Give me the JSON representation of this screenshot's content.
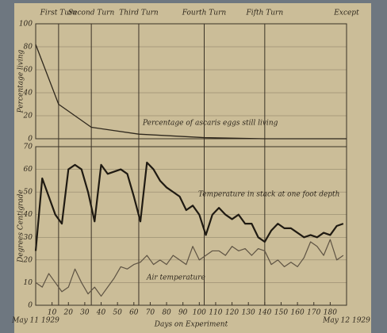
{
  "chart_data": [
    {
      "type": "line",
      "ylabel": "Percentage living",
      "xlim": [
        0,
        190
      ],
      "ylim": [
        0,
        100
      ],
      "yticks": [
        0,
        20,
        40,
        60,
        80,
        100
      ],
      "turns": [
        {
          "label": "First Turn",
          "day": 14
        },
        {
          "label": "Second Turn",
          "day": 34
        },
        {
          "label": "Third Turn",
          "day": 63
        },
        {
          "label": "Fourth Turn",
          "day": 103
        },
        {
          "label": "Fifth Turn",
          "day": 140
        },
        {
          "label": "Except",
          "day": 190
        }
      ],
      "x": [
        0,
        14,
        34,
        63,
        103,
        140,
        190
      ],
      "series": [
        {
          "name": "Percentage of ascaris eggs still living",
          "color": "#2e271c",
          "values": [
            82,
            30,
            10,
            4,
            1,
            0,
            0
          ]
        }
      ]
    },
    {
      "type": "line",
      "ylabel": "Degrees Centigrade",
      "xlabel": "Days on Experiment",
      "start_label": "May 11 1929",
      "end_label": "May 12 1929",
      "xlim": [
        0,
        190
      ],
      "xticks": [
        10,
        20,
        30,
        40,
        50,
        60,
        70,
        80,
        90,
        100,
        110,
        120,
        130,
        140,
        150,
        160,
        170,
        180
      ],
      "ylim": [
        0,
        70
      ],
      "yticks": [
        0,
        10,
        20,
        30,
        40,
        50,
        60,
        70
      ],
      "x": [
        0,
        4,
        8,
        12,
        16,
        20,
        24,
        28,
        32,
        36,
        40,
        44,
        48,
        52,
        56,
        60,
        64,
        68,
        72,
        76,
        80,
        84,
        88,
        92,
        96,
        100,
        104,
        108,
        112,
        116,
        120,
        124,
        128,
        132,
        136,
        140,
        144,
        148,
        152,
        156,
        160,
        164,
        168,
        172,
        176,
        180,
        184,
        188
      ],
      "series": [
        {
          "name": "Temperature in stack at one foot depth",
          "color": "#1f1a12",
          "width": 2.2,
          "values": [
            24,
            56,
            48,
            40,
            36,
            60,
            62,
            60,
            50,
            37,
            62,
            58,
            59,
            60,
            58,
            48,
            37,
            63,
            60,
            55,
            52,
            50,
            48,
            42,
            44,
            40,
            31,
            40,
            43,
            40,
            38,
            40,
            36,
            36,
            30,
            28,
            33,
            36,
            34,
            34,
            32,
            30,
            31,
            30,
            32,
            31,
            35,
            36
          ]
        },
        {
          "name": "Air temperature",
          "color": "#5e5343",
          "width": 1.2,
          "values": [
            10,
            8,
            14,
            10,
            6,
            8,
            16,
            10,
            5,
            8,
            4,
            8,
            12,
            17,
            16,
            18,
            19,
            22,
            18,
            20,
            18,
            22,
            20,
            18,
            26,
            20,
            22,
            24,
            24,
            22,
            26,
            24,
            25,
            22,
            25,
            24,
            18,
            20,
            17,
            19,
            17,
            21,
            28,
            26,
            22,
            29,
            20,
            22
          ]
        }
      ]
    }
  ]
}
